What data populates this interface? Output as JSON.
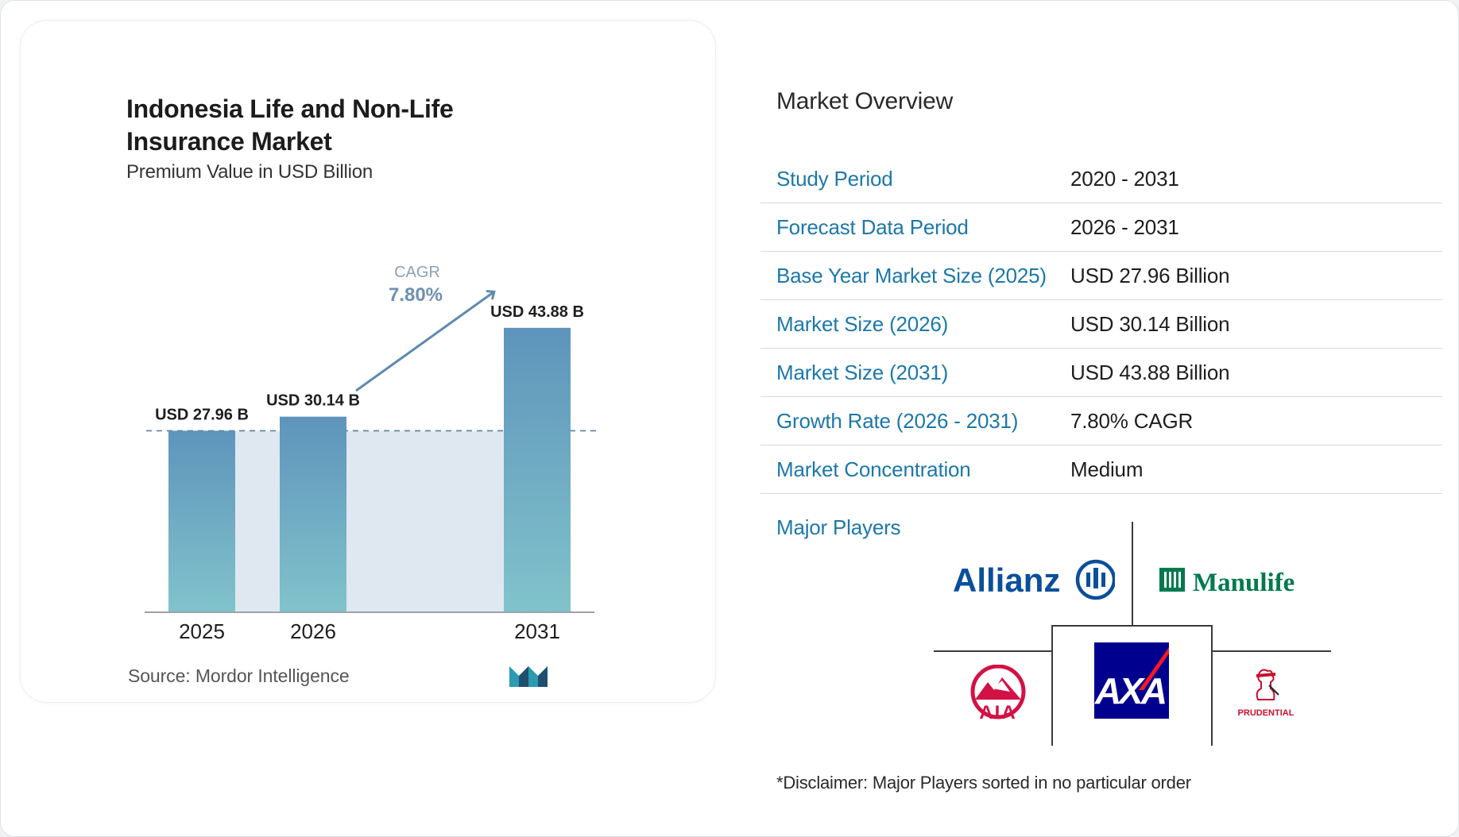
{
  "chart_data": {
    "type": "bar",
    "title": "Indonesia Life and Non-Life Insurance Market",
    "subtitle": "Premium Value in USD Billion",
    "categories": [
      "2025",
      "2026",
      "2031"
    ],
    "values": [
      27.96,
      30.14,
      43.88
    ],
    "value_labels": [
      "USD 27.96 B",
      "USD 30.14 B",
      "USD 43.88 B"
    ],
    "cagr_label": "CAGR",
    "cagr_value": "7.80%",
    "ylim": [
      0,
      46
    ],
    "grid": false,
    "colors": {
      "bar_top": "#5e94bb",
      "bar_bottom": "#81c3cb",
      "band": "#dfe8f0",
      "arrow": "#5e8ab0",
      "dash": "#5a7f98"
    }
  },
  "source": "Source: Mordor Intelligence",
  "overview": {
    "title": "Market Overview",
    "rows": [
      {
        "label": "Study Period",
        "value": "2020 - 2031"
      },
      {
        "label": "Forecast Data Period",
        "value": "2026 - 2031"
      },
      {
        "label": "Base Year Market Size (2025)",
        "value": "USD 27.96 Billion"
      },
      {
        "label": "Market Size (2026)",
        "value": "USD 30.14 Billion"
      },
      {
        "label": "Market Size (2031)",
        "value": "USD 43.88 Billion"
      },
      {
        "label": "Growth Rate (2026 - 2031)",
        "value": "7.80% CAGR"
      },
      {
        "label": "Market Concentration",
        "value": "Medium"
      }
    ]
  },
  "major_players": {
    "title": "Major Players",
    "logos": [
      "Allianz",
      "Manulife",
      "AIA",
      "AXA",
      "PRUDENTIAL"
    ]
  },
  "disclaimer": "*Disclaimer: Major Players sorted in no particular order"
}
